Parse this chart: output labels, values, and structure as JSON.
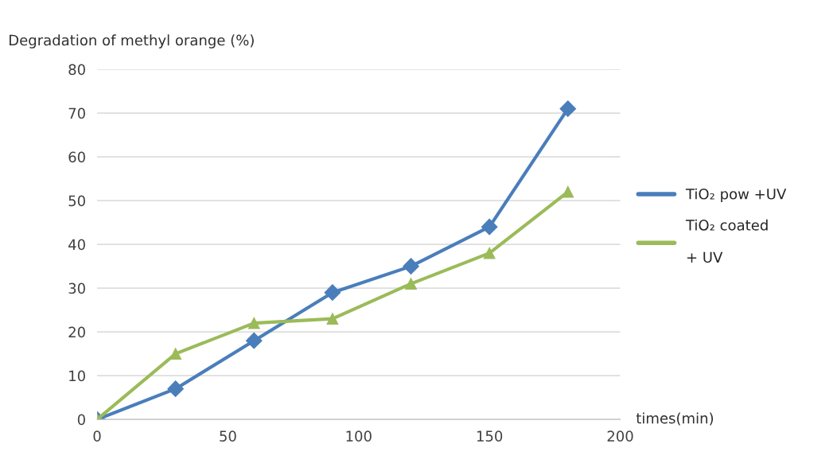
{
  "chart_data": {
    "type": "line",
    "ylabel": "Degradation of methyl orange (%)",
    "xlabel": "times(min)",
    "x": [
      0,
      30,
      60,
      90,
      120,
      150,
      180
    ],
    "series": [
      {
        "name": "TiO₂ pow +UV",
        "color": "#4a7ebb",
        "marker": "diamond",
        "values": [
          0,
          7,
          18,
          29,
          35,
          44,
          71
        ]
      },
      {
        "name": "TiO₂ coated\n\n+ UV",
        "color": "#9bbb59",
        "marker": "triangle",
        "values": [
          0,
          15,
          22,
          23,
          31,
          38,
          52
        ]
      }
    ],
    "xlim": [
      0,
      200
    ],
    "xticks": [
      0,
      50,
      100,
      150,
      200
    ],
    "ylim": [
      0,
      80
    ],
    "yticks": [
      0,
      10,
      20,
      30,
      40,
      50,
      60,
      70,
      80
    ],
    "grid": "y",
    "legend": "right"
  }
}
